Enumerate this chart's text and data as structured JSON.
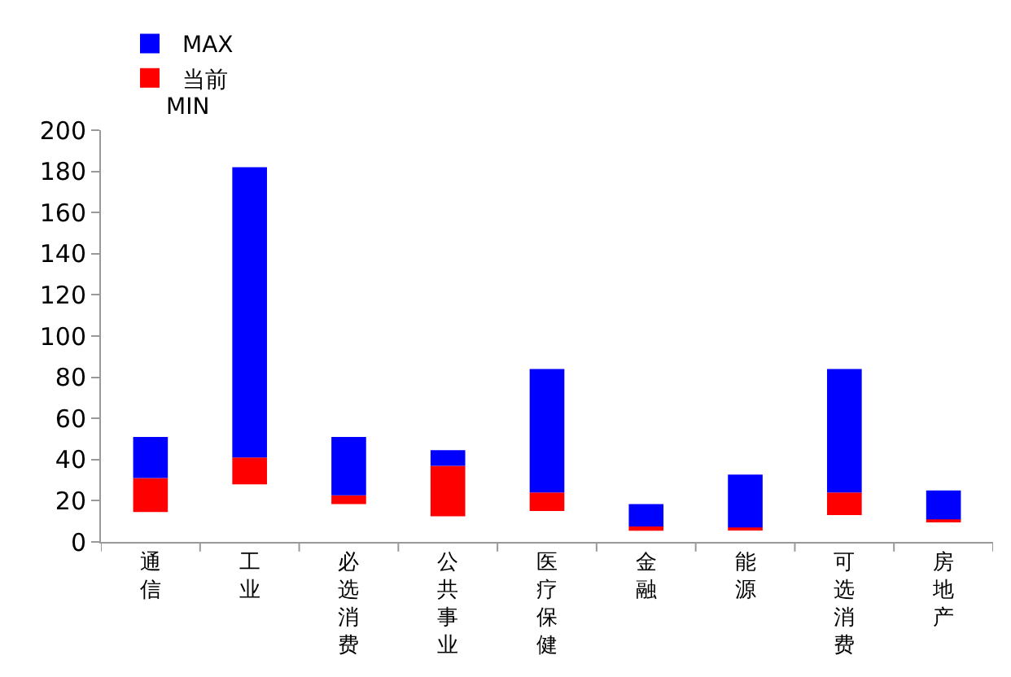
{
  "chart_data": {
    "type": "bar",
    "stacked": true,
    "categories": [
      "通信",
      "工业",
      "必选消费",
      "公共事业",
      "医疗保健",
      "金融",
      "能源",
      "可选消费",
      "房地产"
    ],
    "series": [
      {
        "name": "当前",
        "color": "#ff0000",
        "base": [
          14.5,
          28,
          18.4,
          12.5,
          15,
          5.4,
          5.7,
          13,
          9.6
        ],
        "values": [
          16.5,
          13,
          4.2,
          24.5,
          9,
          2.1,
          1.3,
          11,
          1.4
        ]
      },
      {
        "name": "MAX",
        "color": "#0000ff",
        "values": [
          20,
          141,
          28.4,
          7.6,
          60,
          10.9,
          25.7,
          60,
          14
        ]
      }
    ],
    "annotations": [
      "MIN"
    ],
    "ylim": [
      0,
      200
    ],
    "yticks": [
      0,
      20,
      40,
      60,
      80,
      100,
      120,
      140,
      160,
      180,
      200
    ],
    "legend": "top left"
  }
}
